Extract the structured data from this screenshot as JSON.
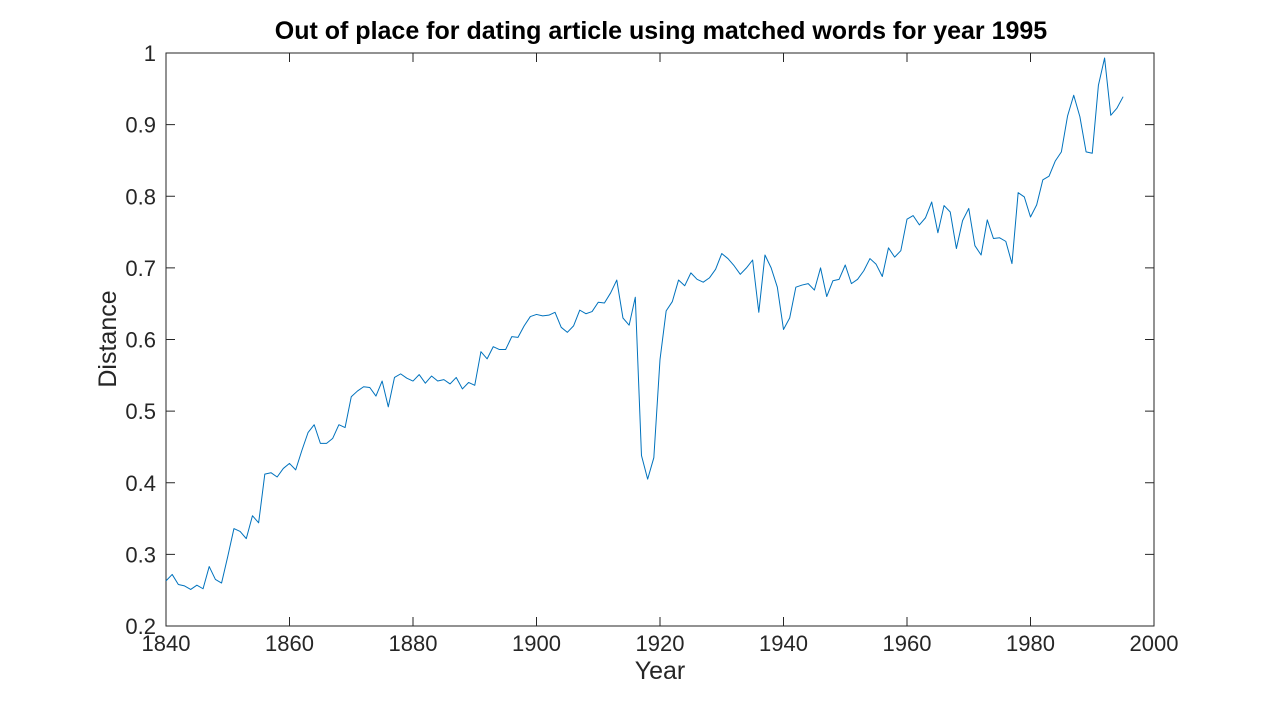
{
  "chart_data": {
    "type": "line",
    "title": "Out of place for dating article using matched words for year 1995",
    "xlabel": "Year",
    "ylabel": "Distance",
    "xlim": [
      1840,
      2000
    ],
    "ylim": [
      0.2,
      1
    ],
    "xticks": [
      1840,
      1860,
      1880,
      1900,
      1920,
      1940,
      1960,
      1980,
      2000
    ],
    "xtick_labels": [
      "1840",
      "1860",
      "1880",
      "1900",
      "1920",
      "1940",
      "1960",
      "1980",
      "2000"
    ],
    "yticks": [
      0.2,
      0.3,
      0.4,
      0.5,
      0.6,
      0.7,
      0.8,
      0.9,
      1
    ],
    "ytick_labels": [
      "0.2",
      "0.3",
      "0.4",
      "0.5",
      "0.6",
      "0.7",
      "0.8",
      "0.9",
      "1"
    ],
    "grid": false,
    "series": [
      {
        "color": "#0072bd",
        "x": [
          1840,
          1841,
          1842,
          1843,
          1844,
          1845,
          1846,
          1847,
          1848,
          1849,
          1850,
          1851,
          1852,
          1853,
          1854,
          1855,
          1856,
          1857,
          1858,
          1859,
          1860,
          1861,
          1862,
          1863,
          1864,
          1865,
          1866,
          1867,
          1868,
          1869,
          1870,
          1871,
          1872,
          1873,
          1874,
          1875,
          1876,
          1877,
          1878,
          1879,
          1880,
          1881,
          1882,
          1883,
          1884,
          1885,
          1886,
          1887,
          1888,
          1889,
          1890,
          1891,
          1892,
          1893,
          1894,
          1895,
          1896,
          1897,
          1898,
          1899,
          1900,
          1901,
          1902,
          1903,
          1904,
          1905,
          1906,
          1907,
          1908,
          1909,
          1910,
          1911,
          1912,
          1913,
          1914,
          1915,
          1916,
          1917,
          1918,
          1919,
          1920,
          1921,
          1922,
          1923,
          1924,
          1925,
          1926,
          1927,
          1928,
          1929,
          1930,
          1931,
          1932,
          1933,
          1934,
          1935,
          1936,
          1937,
          1938,
          1939,
          1940,
          1941,
          1942,
          1943,
          1944,
          1945,
          1946,
          1947,
          1948,
          1949,
          1950,
          1951,
          1952,
          1953,
          1954,
          1955,
          1956,
          1957,
          1958,
          1959,
          1960,
          1961,
          1962,
          1963,
          1964,
          1965,
          1966,
          1967,
          1968,
          1969,
          1970,
          1971,
          1972,
          1973,
          1974,
          1975,
          1976,
          1977,
          1978,
          1979,
          1980,
          1981,
          1982,
          1983,
          1984,
          1985,
          1986,
          1987,
          1988,
          1989,
          1990,
          1991,
          1992,
          1993,
          1994,
          1995
        ],
        "y": [
          0.263,
          0.272,
          0.258,
          0.256,
          0.251,
          0.257,
          0.252,
          0.283,
          0.265,
          0.26,
          0.297,
          0.336,
          0.332,
          0.322,
          0.354,
          0.344,
          0.412,
          0.414,
          0.408,
          0.42,
          0.427,
          0.418,
          0.445,
          0.47,
          0.481,
          0.455,
          0.455,
          0.462,
          0.481,
          0.477,
          0.52,
          0.528,
          0.534,
          0.533,
          0.521,
          0.542,
          0.506,
          0.547,
          0.552,
          0.546,
          0.542,
          0.551,
          0.539,
          0.549,
          0.542,
          0.544,
          0.538,
          0.547,
          0.531,
          0.54,
          0.536,
          0.583,
          0.573,
          0.59,
          0.586,
          0.586,
          0.604,
          0.603,
          0.619,
          0.632,
          0.635,
          0.633,
          0.634,
          0.638,
          0.617,
          0.61,
          0.619,
          0.641,
          0.636,
          0.639,
          0.652,
          0.651,
          0.665,
          0.683,
          0.63,
          0.62,
          0.659,
          0.438,
          0.405,
          0.435,
          0.572,
          0.64,
          0.653,
          0.683,
          0.675,
          0.693,
          0.684,
          0.68,
          0.686,
          0.698,
          0.72,
          0.713,
          0.703,
          0.691,
          0.7,
          0.711,
          0.638,
          0.718,
          0.7,
          0.673,
          0.614,
          0.63,
          0.673,
          0.676,
          0.678,
          0.669,
          0.7,
          0.66,
          0.682,
          0.684,
          0.704,
          0.678,
          0.684,
          0.696,
          0.713,
          0.705,
          0.688,
          0.728,
          0.715,
          0.724,
          0.768,
          0.773,
          0.76,
          0.77,
          0.792,
          0.749,
          0.787,
          0.778,
          0.727,
          0.766,
          0.783,
          0.731,
          0.718,
          0.767,
          0.741,
          0.742,
          0.737,
          0.706,
          0.805,
          0.799,
          0.771,
          0.788,
          0.823,
          0.828,
          0.849,
          0.862,
          0.912,
          0.941,
          0.911,
          0.862,
          0.86,
          0.955,
          0.993,
          0.913,
          0.923,
          0.939
        ]
      }
    ]
  }
}
